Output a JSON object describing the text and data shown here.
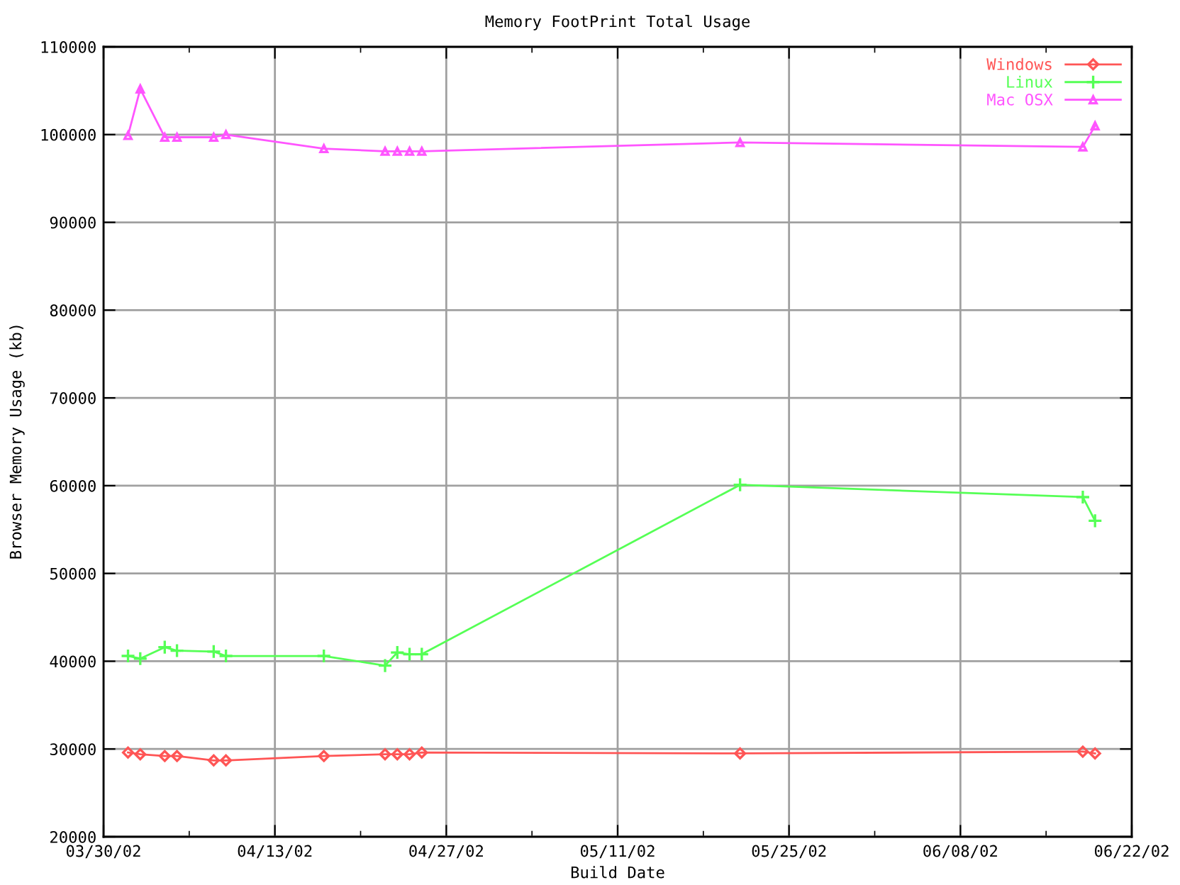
{
  "chart_data": {
    "type": "line",
    "title": "Memory FootPrint Total Usage",
    "xlabel": "Build Date",
    "ylabel": "Browser Memory Usage (kb)",
    "x": [
      "2002-04-01",
      "2002-04-02",
      "2002-04-04",
      "2002-04-05",
      "2002-04-08",
      "2002-04-09",
      "2002-04-17",
      "2002-04-22",
      "2002-04-23",
      "2002-04-24",
      "2002-04-25",
      "2002-05-21",
      "2002-06-18",
      "2002-06-19"
    ],
    "series": [
      {
        "name": "Windows",
        "color": "#ff5555",
        "marker": "diamond",
        "values": [
          29600,
          29400,
          29200,
          29200,
          28700,
          28700,
          29200,
          29400,
          29400,
          29400,
          29600,
          29500,
          29700,
          29500
        ]
      },
      {
        "name": "Linux",
        "color": "#55ff55",
        "marker": "cross",
        "values": [
          40600,
          40300,
          41600,
          41200,
          41100,
          40600,
          40600,
          39500,
          41000,
          40800,
          40800,
          60100,
          58700,
          56000
        ]
      },
      {
        "name": "Mac OSX",
        "color": "#ff55ff",
        "marker": "triangle",
        "values": [
          99900,
          105200,
          99700,
          99700,
          99700,
          100000,
          98400,
          98100,
          98100,
          98100,
          98100,
          99100,
          98600,
          101000
        ]
      }
    ],
    "xlim": [
      "2002-03-30",
      "2002-06-22"
    ],
    "xticks": [
      {
        "value": "2002-03-30",
        "label": "03/30/02"
      },
      {
        "value": "2002-04-13",
        "label": "04/13/02"
      },
      {
        "value": "2002-04-27",
        "label": "04/27/02"
      },
      {
        "value": "2002-05-11",
        "label": "05/11/02"
      },
      {
        "value": "2002-05-25",
        "label": "05/25/02"
      },
      {
        "value": "2002-06-08",
        "label": "06/08/02"
      },
      {
        "value": "2002-06-22",
        "label": "06/22/02"
      }
    ],
    "ylim": [
      20000,
      110000
    ],
    "yticks": [
      20000,
      30000,
      40000,
      50000,
      60000,
      70000,
      80000,
      90000,
      100000,
      110000
    ],
    "grid": true,
    "legend": "top right",
    "line_style": "solid"
  }
}
